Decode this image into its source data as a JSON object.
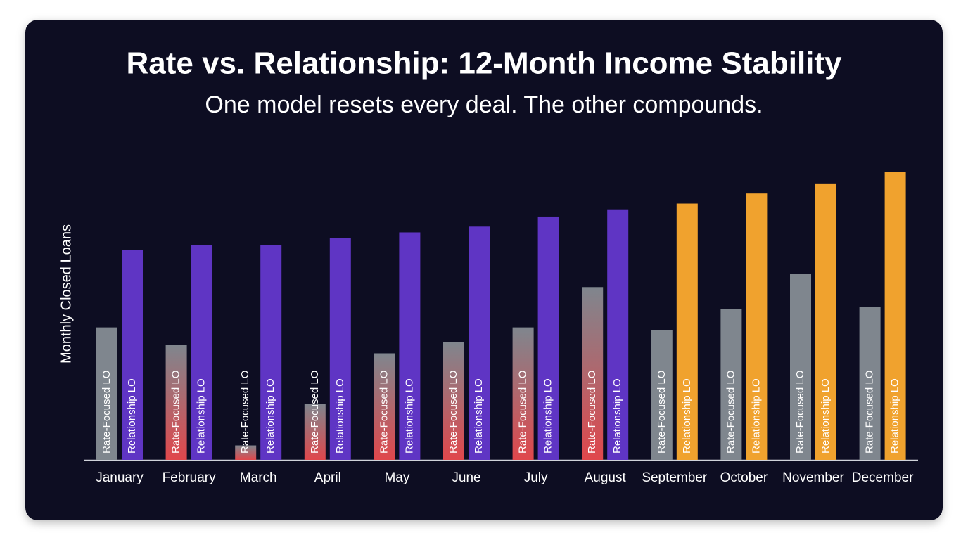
{
  "chart_data": {
    "type": "bar",
    "title": "Rate vs. Relationship: 12-Month Income Stability",
    "subtitle": "One model resets every deal. The other compounds.",
    "y_label": "Monthly Closed Loans",
    "categories": [
      "January",
      "February",
      "March",
      "April",
      "May",
      "June",
      "July",
      "August",
      "September",
      "October",
      "November",
      "December"
    ],
    "series": [
      {
        "name": "Rate-Focused LO",
        "colors": [
          "#7f868e",
          "#e0474c",
          "#e0474c",
          "#e0474c",
          "#e0474c",
          "#e0474c",
          "#e0474c",
          "#e0474c",
          "#7f868e",
          "#7f868e",
          "#7f868e",
          "#7f868e"
        ],
        "values": [
          9.2,
          8.0,
          1.0,
          3.9,
          7.4,
          8.2,
          9.2,
          12.0,
          9.0,
          10.5,
          12.9,
          10.6
        ]
      },
      {
        "name": "Relationship LO",
        "colors": [
          "#5f35c4",
          "#5f35c4",
          "#5f35c4",
          "#5f35c4",
          "#5f35c4",
          "#5f35c4",
          "#5f35c4",
          "#5f35c4",
          "#f0a22e",
          "#f0a22e",
          "#f0a22e",
          "#f0a22e"
        ],
        "values": [
          14.6,
          14.9,
          14.9,
          15.4,
          15.8,
          16.2,
          16.9,
          17.4,
          17.8,
          18.5,
          19.2,
          20.0
        ]
      }
    ],
    "ylim": [
      0,
      21
    ]
  }
}
